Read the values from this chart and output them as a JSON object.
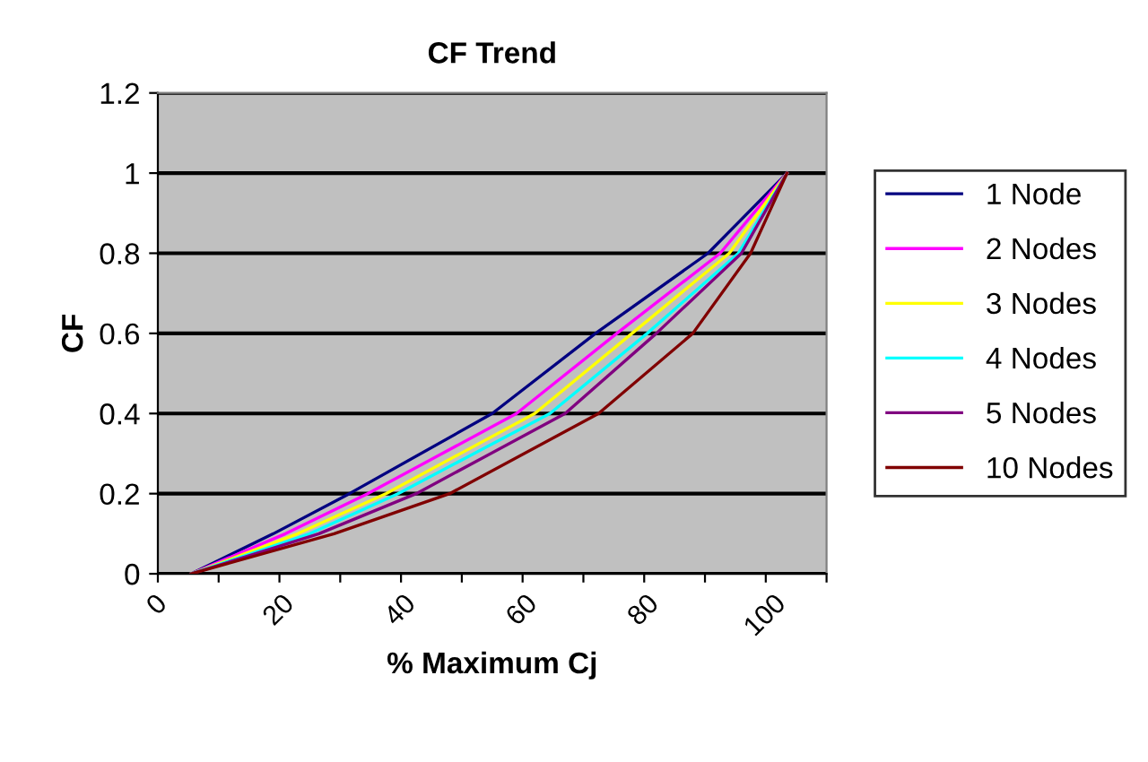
{
  "chart_data": {
    "type": "line",
    "title": "CF Trend",
    "xlabel": "% Maximum Cj",
    "ylabel": "CF",
    "series": [
      {
        "name": "1 Node",
        "color": "#000080",
        "x": [
          5.5,
          19,
          31.5,
          55,
          72,
          90.5,
          103.5
        ],
        "values": [
          0,
          0.1,
          0.2,
          0.4,
          0.6,
          0.8,
          1
        ]
      },
      {
        "name": "2 Nodes",
        "color": "#ff00ff",
        "x": [
          5.5,
          21,
          34.5,
          59,
          75.5,
          92.5,
          103.5
        ],
        "values": [
          0,
          0.1,
          0.2,
          0.4,
          0.6,
          0.8,
          1
        ]
      },
      {
        "name": "3 Nodes",
        "color": "#ffff00",
        "x": [
          5.5,
          23,
          37.5,
          62,
          78,
          94,
          103.5
        ],
        "values": [
          0,
          0.1,
          0.2,
          0.4,
          0.6,
          0.8,
          1
        ]
      },
      {
        "name": "4 Nodes",
        "color": "#00ffff",
        "x": [
          5.5,
          25,
          39.5,
          64.5,
          80.5,
          95.5,
          103.5
        ],
        "values": [
          0,
          0.1,
          0.2,
          0.4,
          0.6,
          0.8,
          1
        ]
      },
      {
        "name": "5 Nodes",
        "color": "#800080",
        "x": [
          5.5,
          26.5,
          42.5,
          67,
          82,
          96,
          103.5
        ],
        "values": [
          0,
          0.1,
          0.2,
          0.4,
          0.6,
          0.8,
          1
        ]
      },
      {
        "name": "10 Nodes",
        "color": "#800000",
        "x": [
          5.5,
          29,
          48,
          72.5,
          88,
          97.5,
          103.5
        ],
        "values": [
          0,
          0.1,
          0.2,
          0.4,
          0.6,
          0.8,
          1
        ]
      }
    ],
    "xlim": [
      0,
      110
    ],
    "xticks": [
      0,
      {
        "value": 10,
        "label": null
      },
      20,
      {
        "value": 30,
        "label": null
      },
      40,
      {
        "value": 50,
        "label": null
      },
      60,
      {
        "value": 70,
        "label": null
      },
      80,
      {
        "value": 90,
        "label": null
      },
      100,
      {
        "value": 110,
        "label": null
      }
    ],
    "ylim": [
      0,
      1.2
    ],
    "yticks": [
      0,
      0.2,
      0.4,
      0.6,
      0.8,
      1,
      1.2
    ],
    "grid": "y",
    "legend": "right",
    "marker": "none",
    "line_style": "solid"
  }
}
